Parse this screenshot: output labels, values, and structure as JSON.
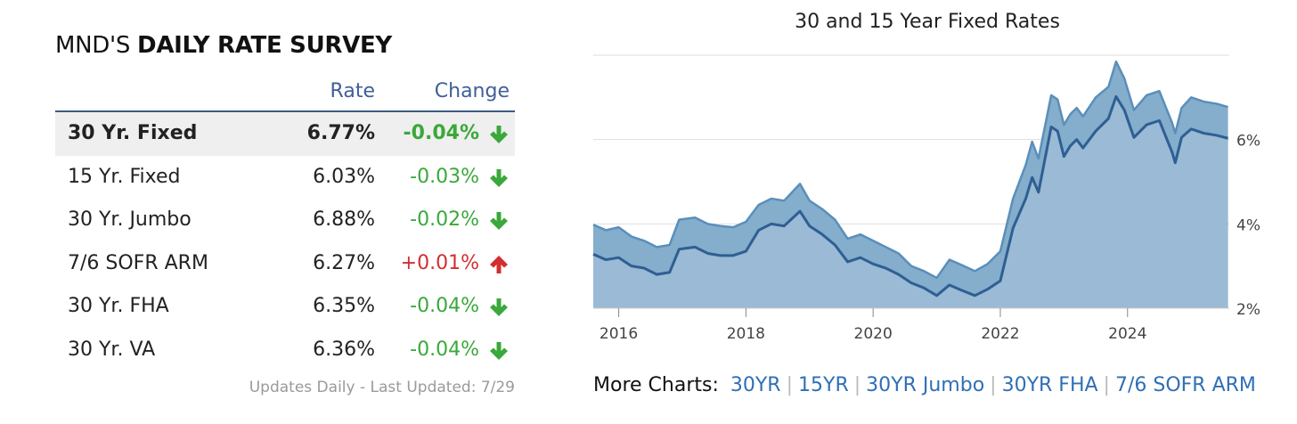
{
  "survey": {
    "title_prefix": "MND'S",
    "title_bold": "DAILY RATE SURVEY",
    "col_rate": "Rate",
    "col_change": "Change",
    "rows": [
      {
        "product": "30 Yr. Fixed",
        "rate": "6.77%",
        "change": "-0.04%",
        "direction": "down"
      },
      {
        "product": "15 Yr. Fixed",
        "rate": "6.03%",
        "change": "-0.03%",
        "direction": "down"
      },
      {
        "product": "30 Yr. Jumbo",
        "rate": "6.88%",
        "change": "-0.02%",
        "direction": "down"
      },
      {
        "product": "7/6 SOFR ARM",
        "rate": "6.27%",
        "change": "+0.01%",
        "direction": "up"
      },
      {
        "product": "30 Yr. FHA",
        "rate": "6.35%",
        "change": "-0.04%",
        "direction": "down"
      },
      {
        "product": "30 Yr. VA",
        "rate": "6.36%",
        "change": "-0.04%",
        "direction": "down"
      }
    ],
    "updated": "Updates Daily - Last Updated: 7/29"
  },
  "colors": {
    "down": "#3aa83a",
    "up": "#d32f2f",
    "link": "#2f6fb5",
    "area_30yr": "#7ea9c9",
    "area_15yr": "#9dbcd6",
    "line_30yr": "#5a8fba",
    "line_15yr": "#2e5f93"
  },
  "chart_data": {
    "type": "area",
    "title": "30 and 15 Year Fixed Rates",
    "x_ticks": [
      "2016",
      "2018",
      "2020",
      "2022",
      "2024"
    ],
    "y_ticks": [
      "2%",
      "4%",
      "6%"
    ],
    "ylim": [
      2,
      8
    ],
    "xlim": [
      2015.6,
      2025.6
    ],
    "grid": "horizontal",
    "y_axis_side": "right",
    "series": [
      {
        "points": [
          [
            2015.6,
            3.98
          ],
          [
            2015.8,
            3.85
          ],
          [
            2016.0,
            3.92
          ],
          [
            2016.2,
            3.7
          ],
          [
            2016.4,
            3.6
          ],
          [
            2016.6,
            3.45
          ],
          [
            2016.8,
            3.5
          ],
          [
            2016.95,
            4.1
          ],
          [
            2017.2,
            4.15
          ],
          [
            2017.4,
            4.0
          ],
          [
            2017.6,
            3.95
          ],
          [
            2017.8,
            3.92
          ],
          [
            2018.0,
            4.05
          ],
          [
            2018.2,
            4.45
          ],
          [
            2018.4,
            4.6
          ],
          [
            2018.6,
            4.55
          ],
          [
            2018.85,
            4.95
          ],
          [
            2019.0,
            4.55
          ],
          [
            2019.2,
            4.35
          ],
          [
            2019.4,
            4.1
          ],
          [
            2019.6,
            3.65
          ],
          [
            2019.8,
            3.75
          ],
          [
            2020.0,
            3.6
          ],
          [
            2020.2,
            3.45
          ],
          [
            2020.4,
            3.3
          ],
          [
            2020.6,
            3.0
          ],
          [
            2020.8,
            2.88
          ],
          [
            2021.0,
            2.72
          ],
          [
            2021.2,
            3.15
          ],
          [
            2021.4,
            3.02
          ],
          [
            2021.6,
            2.88
          ],
          [
            2021.8,
            3.05
          ],
          [
            2022.0,
            3.35
          ],
          [
            2022.2,
            4.6
          ],
          [
            2022.4,
            5.4
          ],
          [
            2022.5,
            5.95
          ],
          [
            2022.6,
            5.55
          ],
          [
            2022.8,
            7.05
          ],
          [
            2022.9,
            6.95
          ],
          [
            2023.0,
            6.35
          ],
          [
            2023.1,
            6.6
          ],
          [
            2023.2,
            6.75
          ],
          [
            2023.3,
            6.55
          ],
          [
            2023.5,
            7.0
          ],
          [
            2023.7,
            7.25
          ],
          [
            2023.82,
            7.85
          ],
          [
            2023.95,
            7.45
          ],
          [
            2024.1,
            6.7
          ],
          [
            2024.3,
            7.05
          ],
          [
            2024.5,
            7.15
          ],
          [
            2024.7,
            6.4
          ],
          [
            2024.75,
            6.15
          ],
          [
            2024.85,
            6.75
          ],
          [
            2025.0,
            7.0
          ],
          [
            2025.2,
            6.9
          ],
          [
            2025.4,
            6.85
          ],
          [
            2025.58,
            6.77
          ]
        ]
      },
      {
        "points": [
          [
            2015.6,
            3.28
          ],
          [
            2015.8,
            3.15
          ],
          [
            2016.0,
            3.2
          ],
          [
            2016.2,
            3.0
          ],
          [
            2016.4,
            2.95
          ],
          [
            2016.6,
            2.8
          ],
          [
            2016.8,
            2.85
          ],
          [
            2016.95,
            3.4
          ],
          [
            2017.2,
            3.45
          ],
          [
            2017.4,
            3.3
          ],
          [
            2017.6,
            3.25
          ],
          [
            2017.8,
            3.25
          ],
          [
            2018.0,
            3.35
          ],
          [
            2018.2,
            3.85
          ],
          [
            2018.4,
            4.0
          ],
          [
            2018.6,
            3.95
          ],
          [
            2018.85,
            4.3
          ],
          [
            2019.0,
            3.95
          ],
          [
            2019.2,
            3.75
          ],
          [
            2019.4,
            3.5
          ],
          [
            2019.6,
            3.1
          ],
          [
            2019.8,
            3.2
          ],
          [
            2020.0,
            3.05
          ],
          [
            2020.2,
            2.95
          ],
          [
            2020.4,
            2.8
          ],
          [
            2020.6,
            2.6
          ],
          [
            2020.8,
            2.48
          ],
          [
            2021.0,
            2.3
          ],
          [
            2021.2,
            2.55
          ],
          [
            2021.4,
            2.42
          ],
          [
            2021.6,
            2.3
          ],
          [
            2021.8,
            2.45
          ],
          [
            2022.0,
            2.65
          ],
          [
            2022.2,
            3.9
          ],
          [
            2022.4,
            4.6
          ],
          [
            2022.5,
            5.1
          ],
          [
            2022.6,
            4.75
          ],
          [
            2022.8,
            6.3
          ],
          [
            2022.9,
            6.2
          ],
          [
            2023.0,
            5.6
          ],
          [
            2023.1,
            5.85
          ],
          [
            2023.2,
            6.0
          ],
          [
            2023.3,
            5.8
          ],
          [
            2023.5,
            6.2
          ],
          [
            2023.7,
            6.5
          ],
          [
            2023.82,
            7.02
          ],
          [
            2023.95,
            6.7
          ],
          [
            2024.1,
            6.05
          ],
          [
            2024.3,
            6.35
          ],
          [
            2024.5,
            6.45
          ],
          [
            2024.7,
            5.7
          ],
          [
            2024.75,
            5.45
          ],
          [
            2024.85,
            6.05
          ],
          [
            2025.0,
            6.25
          ],
          [
            2025.2,
            6.15
          ],
          [
            2025.4,
            6.1
          ],
          [
            2025.58,
            6.03
          ]
        ]
      }
    ]
  },
  "more_charts": {
    "label": "More Charts:",
    "links": [
      "30YR",
      "15YR",
      "30YR Jumbo",
      "30YR FHA",
      "7/6 SOFR ARM"
    ]
  }
}
